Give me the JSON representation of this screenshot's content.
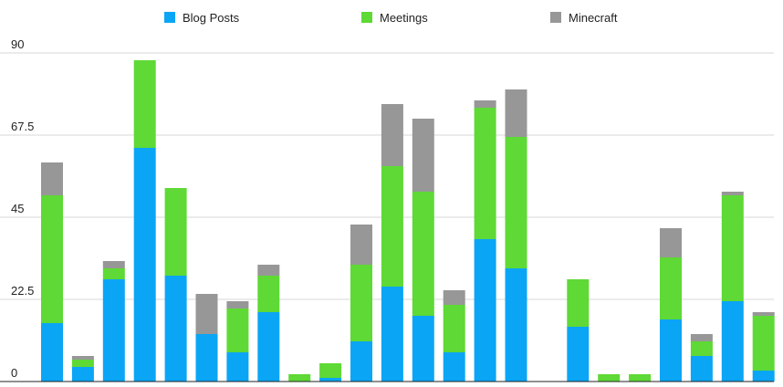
{
  "chart_data": {
    "type": "bar",
    "stacked": true,
    "title": "",
    "xlabel": "",
    "ylabel": "",
    "ylim": [
      0,
      90
    ],
    "yticks": [
      "0",
      "22.5",
      "45",
      "67.5",
      "90"
    ],
    "ytick_values": [
      0,
      22.5,
      45,
      67.5,
      90
    ],
    "grid": true,
    "legend_position": "top",
    "categories": [
      "",
      "",
      "",
      "",
      "",
      "",
      "",
      "",
      "",
      "",
      "",
      "",
      "",
      "",
      "",
      "",
      "",
      "",
      "",
      "",
      "",
      "",
      "",
      "",
      ""
    ],
    "series": [
      {
        "name": "Blog Posts",
        "color": "#0BA5F5",
        "values": [
          16,
          4,
          28,
          64,
          29,
          13,
          8,
          19,
          0,
          1,
          11,
          26,
          18,
          8,
          39,
          31,
          0,
          15,
          0,
          0,
          17,
          7,
          22,
          3,
          0
        ]
      },
      {
        "name": "Meetings",
        "color": "#5ED935",
        "values": [
          35,
          2,
          3,
          24,
          24,
          0,
          12,
          10,
          2,
          4,
          21,
          33,
          34,
          13,
          36,
          36,
          0,
          13,
          2,
          2,
          17,
          4,
          29,
          15,
          0
        ]
      },
      {
        "name": "Minecraft",
        "color": "#979797",
        "values": [
          9,
          1,
          2,
          0,
          0,
          11,
          2,
          3,
          0,
          0,
          11,
          17,
          20,
          4,
          2,
          13,
          0,
          0,
          0,
          0,
          8,
          2,
          1,
          1,
          0
        ]
      }
    ]
  }
}
